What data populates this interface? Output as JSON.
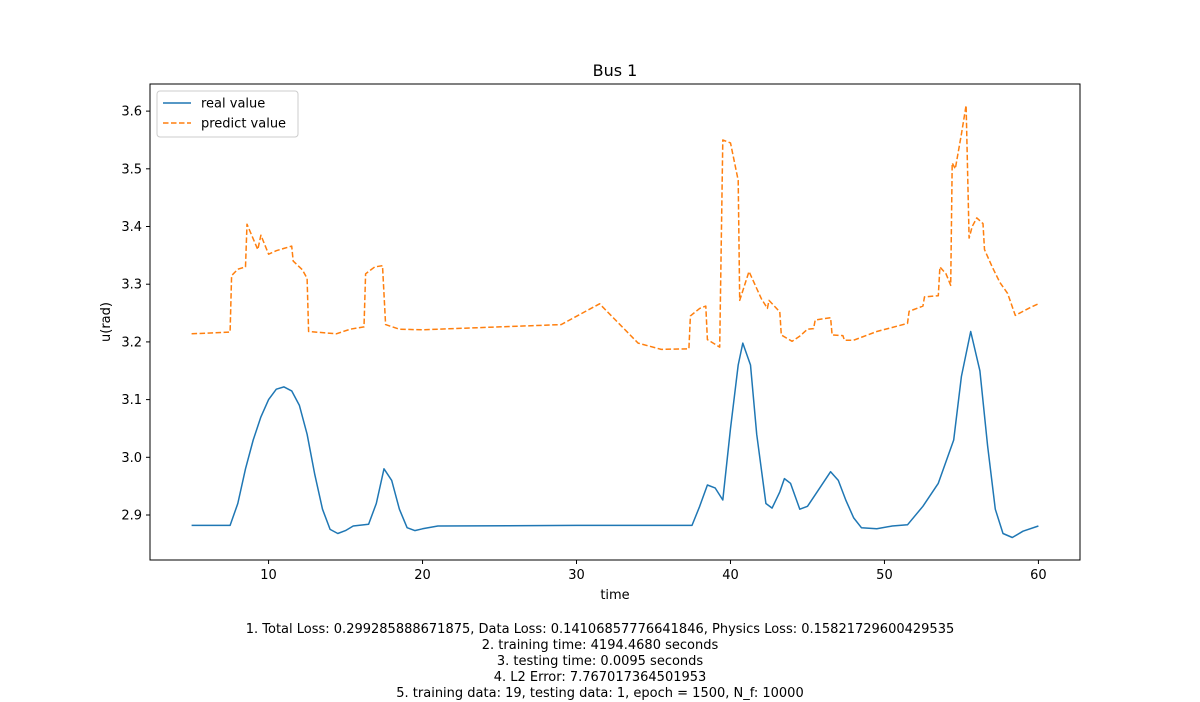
{
  "chart_data": {
    "type": "line",
    "title": "Bus 1",
    "xlabel": "time",
    "ylabel": "u(rad)",
    "xlim": [
      2.3,
      62.7
    ],
    "ylim": [
      2.822,
      3.647
    ],
    "xticks": [
      10,
      20,
      30,
      40,
      50,
      60
    ],
    "yticks": [
      2.9,
      3.0,
      3.1,
      3.2,
      3.3,
      3.4,
      3.5,
      3.6
    ],
    "legend_position": "top-left",
    "grid": false,
    "series": [
      {
        "name": "real value",
        "color": "#1f77b4",
        "style": "solid",
        "points": [
          [
            5,
            2.882
          ],
          [
            7.5,
            2.882
          ],
          [
            8,
            2.92
          ],
          [
            8.5,
            2.98
          ],
          [
            9,
            3.03
          ],
          [
            9.5,
            3.07
          ],
          [
            10,
            3.1
          ],
          [
            10.5,
            3.118
          ],
          [
            11,
            3.122
          ],
          [
            11.5,
            3.115
          ],
          [
            12,
            3.09
          ],
          [
            12.5,
            3.04
          ],
          [
            13,
            2.97
          ],
          [
            13.5,
            2.91
          ],
          [
            14,
            2.875
          ],
          [
            14.5,
            2.868
          ],
          [
            15,
            2.873
          ],
          [
            15.5,
            2.881
          ],
          [
            16.5,
            2.884
          ],
          [
            17,
            2.92
          ],
          [
            17.5,
            2.98
          ],
          [
            18,
            2.96
          ],
          [
            18.5,
            2.91
          ],
          [
            19,
            2.878
          ],
          [
            19.5,
            2.873
          ],
          [
            20,
            2.876
          ],
          [
            21,
            2.881
          ],
          [
            30,
            2.882
          ],
          [
            37.5,
            2.882
          ],
          [
            38,
            2.915
          ],
          [
            38.5,
            2.952
          ],
          [
            39,
            2.947
          ],
          [
            39.5,
            2.926
          ],
          [
            40,
            3.05
          ],
          [
            40.5,
            3.16
          ],
          [
            40.8,
            3.198
          ],
          [
            41.3,
            3.16
          ],
          [
            41.7,
            3.04
          ],
          [
            42.3,
            2.92
          ],
          [
            42.7,
            2.912
          ],
          [
            43.2,
            2.94
          ],
          [
            43.5,
            2.963
          ],
          [
            43.9,
            2.955
          ],
          [
            44.5,
            2.91
          ],
          [
            45,
            2.915
          ],
          [
            45.5,
            2.935
          ],
          [
            46.5,
            2.975
          ],
          [
            47,
            2.96
          ],
          [
            47.5,
            2.925
          ],
          [
            48,
            2.895
          ],
          [
            48.5,
            2.878
          ],
          [
            49.5,
            2.876
          ],
          [
            50.5,
            2.881
          ],
          [
            51.5,
            2.883
          ],
          [
            52.5,
            2.915
          ],
          [
            53.5,
            2.955
          ],
          [
            54.5,
            3.03
          ],
          [
            55,
            3.14
          ],
          [
            55.6,
            3.218
          ],
          [
            56.2,
            3.15
          ],
          [
            56.7,
            3.02
          ],
          [
            57.2,
            2.91
          ],
          [
            57.7,
            2.868
          ],
          [
            58.3,
            2.861
          ],
          [
            59,
            2.872
          ],
          [
            60,
            2.881
          ]
        ]
      },
      {
        "name": "predict value",
        "color": "#ff7f0e",
        "style": "dashed",
        "points": [
          [
            5,
            3.214
          ],
          [
            7.5,
            3.217
          ],
          [
            7.6,
            3.315
          ],
          [
            8,
            3.326
          ],
          [
            8.5,
            3.33
          ],
          [
            8.6,
            3.404
          ],
          [
            9.3,
            3.36
          ],
          [
            9.5,
            3.385
          ],
          [
            10,
            3.352
          ],
          [
            10.5,
            3.358
          ],
          [
            11,
            3.362
          ],
          [
            11.5,
            3.366
          ],
          [
            11.6,
            3.34
          ],
          [
            12.2,
            3.325
          ],
          [
            12.5,
            3.31
          ],
          [
            12.6,
            3.218
          ],
          [
            14.4,
            3.214
          ],
          [
            15.3,
            3.222
          ],
          [
            16.2,
            3.226
          ],
          [
            16.3,
            3.318
          ],
          [
            16.9,
            3.33
          ],
          [
            17.4,
            3.332
          ],
          [
            17.6,
            3.23
          ],
          [
            18.5,
            3.222
          ],
          [
            20,
            3.221
          ],
          [
            22,
            3.223
          ],
          [
            29,
            3.23
          ],
          [
            31.5,
            3.266
          ],
          [
            34,
            3.198
          ],
          [
            35.5,
            3.187
          ],
          [
            37.3,
            3.188
          ],
          [
            37.4,
            3.245
          ],
          [
            38,
            3.258
          ],
          [
            38.4,
            3.262
          ],
          [
            38.5,
            3.204
          ],
          [
            39.3,
            3.191
          ],
          [
            39.5,
            3.55
          ],
          [
            40,
            3.545
          ],
          [
            40.5,
            3.48
          ],
          [
            40.6,
            3.272
          ],
          [
            41.2,
            3.322
          ],
          [
            42,
            3.275
          ],
          [
            42.4,
            3.258
          ],
          [
            42.5,
            3.272
          ],
          [
            43.2,
            3.252
          ],
          [
            43.3,
            3.212
          ],
          [
            44,
            3.201
          ],
          [
            44.5,
            3.21
          ],
          [
            45,
            3.222
          ],
          [
            45.4,
            3.223
          ],
          [
            45.5,
            3.238
          ],
          [
            46.5,
            3.242
          ],
          [
            46.6,
            3.212
          ],
          [
            47.3,
            3.211
          ],
          [
            47.4,
            3.203
          ],
          [
            48,
            3.203
          ],
          [
            49.5,
            3.218
          ],
          [
            51.5,
            3.232
          ],
          [
            51.6,
            3.253
          ],
          [
            52.5,
            3.262
          ],
          [
            52.6,
            3.278
          ],
          [
            53.5,
            3.28
          ],
          [
            53.6,
            3.33
          ],
          [
            54,
            3.318
          ],
          [
            54.3,
            3.298
          ],
          [
            54.4,
            3.51
          ],
          [
            54.6,
            3.5
          ],
          [
            55,
            3.56
          ],
          [
            55.3,
            3.61
          ],
          [
            55.5,
            3.38
          ],
          [
            55.7,
            3.4
          ],
          [
            56,
            3.415
          ],
          [
            56.4,
            3.405
          ],
          [
            56.5,
            3.36
          ],
          [
            57,
            3.33
          ],
          [
            57.5,
            3.303
          ],
          [
            58,
            3.284
          ],
          [
            58.5,
            3.246
          ],
          [
            59.5,
            3.26
          ],
          [
            60,
            3.266
          ]
        ]
      }
    ]
  },
  "caption": [
    "1. Total Loss: 0.299285888671875, Data Loss: 0.14106857776641846, Physics Loss: 0.15821729600429535",
    "2. training time: 4194.4680 seconds",
    "3. testing time: 0.0095 seconds",
    "4. L2 Error: 7.767017364501953",
    "5. training data: 19, testing data: 1, epoch = 1500, N_f: 10000"
  ]
}
